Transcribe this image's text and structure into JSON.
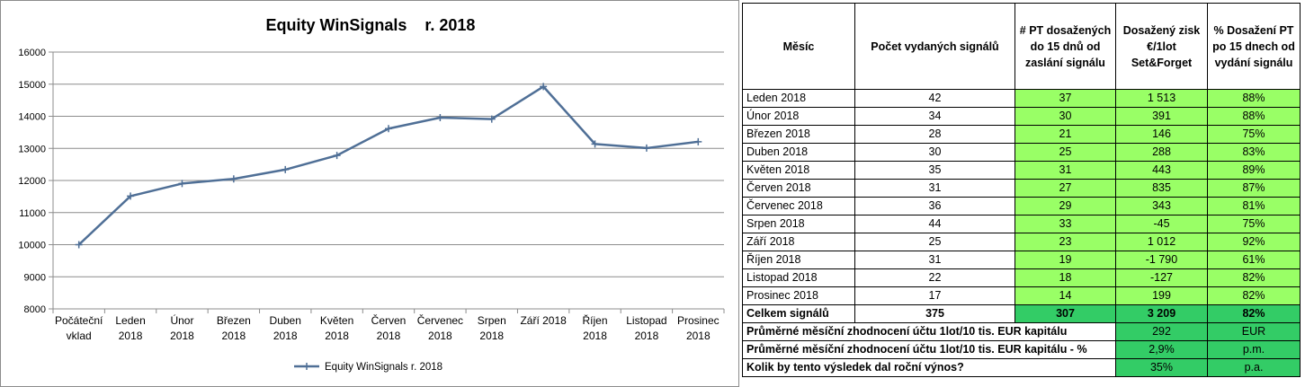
{
  "chart_data": {
    "type": "line",
    "title": "Equity WinSignals    r. 2018",
    "categories": [
      [
        "Počáteční",
        "vklad"
      ],
      [
        "Leden",
        "2018"
      ],
      [
        "Únor",
        "2018"
      ],
      [
        "Březen",
        "2018"
      ],
      [
        "Duben",
        "2018"
      ],
      [
        "Květen",
        "2018"
      ],
      [
        "Červen",
        "2018"
      ],
      [
        "Červenec",
        "2018"
      ],
      [
        "Srpen",
        "2018"
      ],
      [
        "Září 2018"
      ],
      [
        "Říjen",
        "2018"
      ],
      [
        "Listopad",
        "2018"
      ],
      [
        "Prosinec",
        "2018"
      ]
    ],
    "series": [
      {
        "name": "Equity WinSignals    r. 2018",
        "values": [
          10000,
          11513,
          11904,
          12050,
          12338,
          12781,
          13616,
          13959,
          13914,
          14926,
          13136,
          13009,
          13208
        ],
        "color": "#4f6f96"
      }
    ],
    "ylim": [
      8000,
      16000
    ],
    "yticks": [
      "8000",
      "9000",
      "10000",
      "11000",
      "12000",
      "13000",
      "14000",
      "15000",
      "16000"
    ],
    "grid": true,
    "legend_position": "bottom"
  },
  "table": {
    "headers": [
      "Měsíc",
      "Počet vydaných signálů",
      "# PT dosažených do 15 dnů od zaslání signálu",
      "Dosažený zisk €/1lot Set&Forget",
      "% Dosažení  PT po 15 dnech od vydání signálu"
    ],
    "rows": [
      [
        "Leden 2018",
        "42",
        "37",
        "1 513",
        "88%"
      ],
      [
        "Únor 2018",
        "34",
        "30",
        "391",
        "88%"
      ],
      [
        "Březen 2018",
        "28",
        "21",
        "146",
        "75%"
      ],
      [
        "Duben 2018",
        "30",
        "25",
        "288",
        "83%"
      ],
      [
        "Květen 2018",
        "35",
        "31",
        "443",
        "89%"
      ],
      [
        "Červen 2018",
        "31",
        "27",
        "835",
        "87%"
      ],
      [
        "Červenec 2018",
        "36",
        "29",
        "343",
        "81%"
      ],
      [
        "Srpen 2018",
        "44",
        "33",
        "-45",
        "75%"
      ],
      [
        "Září 2018",
        "25",
        "23",
        "1 012",
        "92%"
      ],
      [
        "Říjen 2018",
        "31",
        "19",
        "-1 790",
        "61%"
      ],
      [
        "Listopad 2018",
        "22",
        "18",
        "-127",
        "82%"
      ],
      [
        "Prosinec 2018",
        "17",
        "14",
        "199",
        "82%"
      ]
    ],
    "total": [
      "Celkem signálů",
      "375",
      "307",
      "3 209",
      "82%"
    ],
    "summary": [
      {
        "label": "Průměrné měsíční zhodnocení účtu 1lot/10 tis. EUR kapitálu",
        "value": "292",
        "unit": "EUR"
      },
      {
        "label": "Průměrné měsíční zhodnocení účtu 1lot/10 tis. EUR kapitálu - %",
        "value": "2,9%",
        "unit": "p.m."
      },
      {
        "label": "Kolik by tento výsledek dal roční výnos?",
        "value": "35%",
        "unit": "p.a."
      }
    ],
    "colors": {
      "light_green": "#99ff66",
      "dark_green": "#33cc66"
    }
  }
}
